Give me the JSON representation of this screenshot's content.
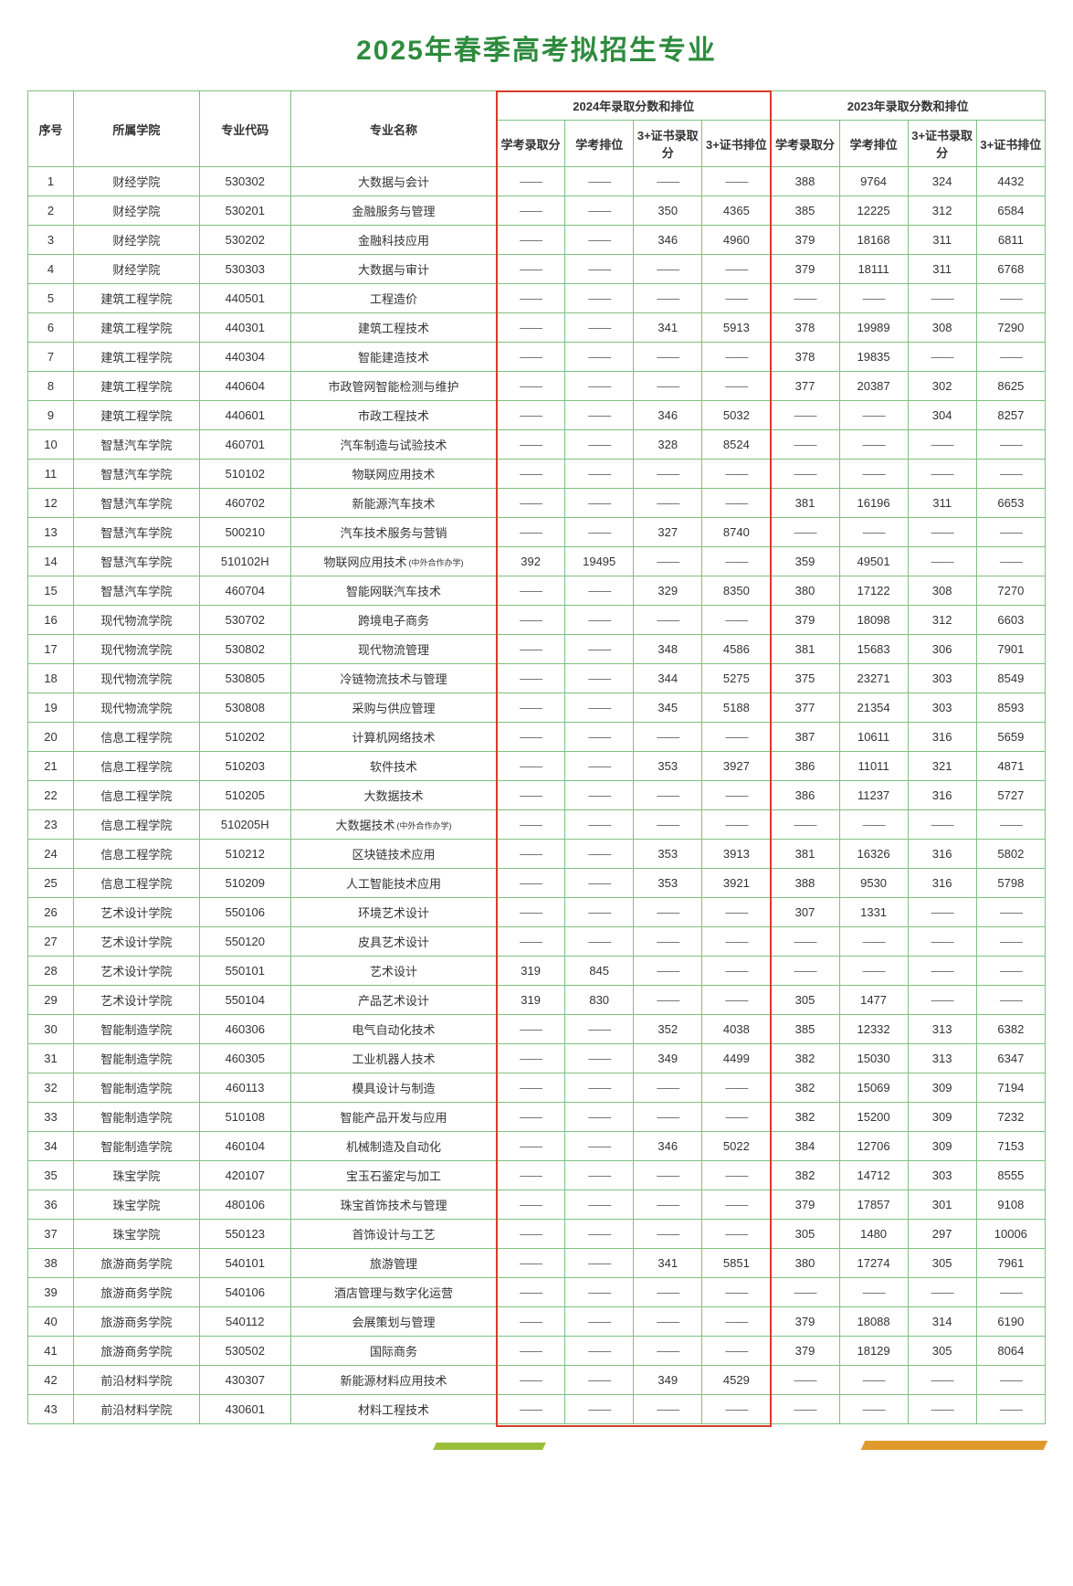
{
  "title": "2025年春季高考拟招生专业",
  "colors": {
    "title": "#2e8b3d",
    "border": "#7fc07f",
    "highlight": "#d93a2b",
    "deco_green": "#9bbf3b",
    "deco_orange": "#e09a2b"
  },
  "headers": {
    "idx": "序号",
    "college": "所属学院",
    "code": "专业代码",
    "major": "专业名称",
    "year2024": "2024年录取分数和排位",
    "year2023": "2023年录取分数和排位",
    "sub": {
      "xk_score": "学考录取分",
      "xk_rank": "学考排位",
      "cert_score": "3+证书录取分",
      "cert_rank": "3+证书排位"
    }
  },
  "dash": "——",
  "note_coop": "(中外合作办学)",
  "rows": [
    {
      "idx": "1",
      "college": "财经学院",
      "code": "530302",
      "major": "大数据与会计",
      "y24": [
        "",
        "",
        "",
        ""
      ],
      "y23": [
        "388",
        "9764",
        "324",
        "4432"
      ]
    },
    {
      "idx": "2",
      "college": "财经学院",
      "code": "530201",
      "major": "金融服务与管理",
      "y24": [
        "",
        "",
        "350",
        "4365"
      ],
      "y23": [
        "385",
        "12225",
        "312",
        "6584"
      ]
    },
    {
      "idx": "3",
      "college": "财经学院",
      "code": "530202",
      "major": "金融科技应用",
      "y24": [
        "",
        "",
        "346",
        "4960"
      ],
      "y23": [
        "379",
        "18168",
        "311",
        "6811"
      ]
    },
    {
      "idx": "4",
      "college": "财经学院",
      "code": "530303",
      "major": "大数据与审计",
      "y24": [
        "",
        "",
        "",
        ""
      ],
      "y23": [
        "379",
        "18111",
        "311",
        "6768"
      ]
    },
    {
      "idx": "5",
      "college": "建筑工程学院",
      "code": "440501",
      "major": "工程造价",
      "y24": [
        "",
        "",
        "",
        ""
      ],
      "y23": [
        "",
        "",
        "",
        ""
      ]
    },
    {
      "idx": "6",
      "college": "建筑工程学院",
      "code": "440301",
      "major": "建筑工程技术",
      "y24": [
        "",
        "",
        "341",
        "5913"
      ],
      "y23": [
        "378",
        "19989",
        "308",
        "7290"
      ]
    },
    {
      "idx": "7",
      "college": "建筑工程学院",
      "code": "440304",
      "major": "智能建造技术",
      "y24": [
        "",
        "",
        "",
        ""
      ],
      "y23": [
        "378",
        "19835",
        "",
        ""
      ]
    },
    {
      "idx": "8",
      "college": "建筑工程学院",
      "code": "440604",
      "major": "市政管网智能检测与维护",
      "y24": [
        "",
        "",
        "",
        ""
      ],
      "y23": [
        "377",
        "20387",
        "302",
        "8625"
      ]
    },
    {
      "idx": "9",
      "college": "建筑工程学院",
      "code": "440601",
      "major": "市政工程技术",
      "y24": [
        "",
        "",
        "346",
        "5032"
      ],
      "y23": [
        "",
        "",
        "304",
        "8257"
      ]
    },
    {
      "idx": "10",
      "college": "智慧汽车学院",
      "code": "460701",
      "major": "汽车制造与试验技术",
      "y24": [
        "",
        "",
        "328",
        "8524"
      ],
      "y23": [
        "",
        "",
        "",
        ""
      ]
    },
    {
      "idx": "11",
      "college": "智慧汽车学院",
      "code": "510102",
      "major": "物联网应用技术",
      "y24": [
        "",
        "",
        "",
        ""
      ],
      "y23": [
        "",
        "",
        "",
        ""
      ]
    },
    {
      "idx": "12",
      "college": "智慧汽车学院",
      "code": "460702",
      "major": "新能源汽车技术",
      "y24": [
        "",
        "",
        "",
        ""
      ],
      "y23": [
        "381",
        "16196",
        "311",
        "6653"
      ]
    },
    {
      "idx": "13",
      "college": "智慧汽车学院",
      "code": "500210",
      "major": "汽车技术服务与营销",
      "y24": [
        "",
        "",
        "327",
        "8740"
      ],
      "y23": [
        "",
        "",
        "",
        ""
      ]
    },
    {
      "idx": "14",
      "college": "智慧汽车学院",
      "code": "510102H",
      "major": "物联网应用技术",
      "note": true,
      "y24": [
        "392",
        "19495",
        "",
        ""
      ],
      "y23": [
        "359",
        "49501",
        "",
        ""
      ]
    },
    {
      "idx": "15",
      "college": "智慧汽车学院",
      "code": "460704",
      "major": "智能网联汽车技术",
      "y24": [
        "",
        "",
        "329",
        "8350"
      ],
      "y23": [
        "380",
        "17122",
        "308",
        "7270"
      ]
    },
    {
      "idx": "16",
      "college": "现代物流学院",
      "code": "530702",
      "major": "跨境电子商务",
      "y24": [
        "",
        "",
        "",
        ""
      ],
      "y23": [
        "379",
        "18098",
        "312",
        "6603"
      ]
    },
    {
      "idx": "17",
      "college": "现代物流学院",
      "code": "530802",
      "major": "现代物流管理",
      "y24": [
        "",
        "",
        "348",
        "4586"
      ],
      "y23": [
        "381",
        "15683",
        "306",
        "7901"
      ]
    },
    {
      "idx": "18",
      "college": "现代物流学院",
      "code": "530805",
      "major": "冷链物流技术与管理",
      "y24": [
        "",
        "",
        "344",
        "5275"
      ],
      "y23": [
        "375",
        "23271",
        "303",
        "8549"
      ]
    },
    {
      "idx": "19",
      "college": "现代物流学院",
      "code": "530808",
      "major": "采购与供应管理",
      "y24": [
        "",
        "",
        "345",
        "5188"
      ],
      "y23": [
        "377",
        "21354",
        "303",
        "8593"
      ]
    },
    {
      "idx": "20",
      "college": "信息工程学院",
      "code": "510202",
      "major": "计算机网络技术",
      "y24": [
        "",
        "",
        "",
        ""
      ],
      "y23": [
        "387",
        "10611",
        "316",
        "5659"
      ]
    },
    {
      "idx": "21",
      "college": "信息工程学院",
      "code": "510203",
      "major": "软件技术",
      "y24": [
        "",
        "",
        "353",
        "3927"
      ],
      "y23": [
        "386",
        "11011",
        "321",
        "4871"
      ]
    },
    {
      "idx": "22",
      "college": "信息工程学院",
      "code": "510205",
      "major": "大数据技术",
      "y24": [
        "",
        "",
        "",
        ""
      ],
      "y23": [
        "386",
        "11237",
        "316",
        "5727"
      ]
    },
    {
      "idx": "23",
      "college": "信息工程学院",
      "code": "510205H",
      "major": "大数据技术",
      "note": true,
      "y24": [
        "",
        "",
        "",
        ""
      ],
      "y23": [
        "",
        "",
        "",
        ""
      ]
    },
    {
      "idx": "24",
      "college": "信息工程学院",
      "code": "510212",
      "major": "区块链技术应用",
      "y24": [
        "",
        "",
        "353",
        "3913"
      ],
      "y23": [
        "381",
        "16326",
        "316",
        "5802"
      ]
    },
    {
      "idx": "25",
      "college": "信息工程学院",
      "code": "510209",
      "major": "人工智能技术应用",
      "y24": [
        "",
        "",
        "353",
        "3921"
      ],
      "y23": [
        "388",
        "9530",
        "316",
        "5798"
      ]
    },
    {
      "idx": "26",
      "college": "艺术设计学院",
      "code": "550106",
      "major": "环境艺术设计",
      "y24": [
        "",
        "",
        "",
        ""
      ],
      "y23": [
        "307",
        "1331",
        "",
        ""
      ]
    },
    {
      "idx": "27",
      "college": "艺术设计学院",
      "code": "550120",
      "major": "皮具艺术设计",
      "y24": [
        "",
        "",
        "",
        ""
      ],
      "y23": [
        "",
        "",
        "",
        ""
      ]
    },
    {
      "idx": "28",
      "college": "艺术设计学院",
      "code": "550101",
      "major": "艺术设计",
      "y24": [
        "319",
        "845",
        "",
        ""
      ],
      "y23": [
        "",
        "",
        "",
        ""
      ]
    },
    {
      "idx": "29",
      "college": "艺术设计学院",
      "code": "550104",
      "major": "产品艺术设计",
      "y24": [
        "319",
        "830",
        "",
        ""
      ],
      "y23": [
        "305",
        "1477",
        "",
        ""
      ]
    },
    {
      "idx": "30",
      "college": "智能制造学院",
      "code": "460306",
      "major": "电气自动化技术",
      "y24": [
        "",
        "",
        "352",
        "4038"
      ],
      "y23": [
        "385",
        "12332",
        "313",
        "6382"
      ]
    },
    {
      "idx": "31",
      "college": "智能制造学院",
      "code": "460305",
      "major": "工业机器人技术",
      "y24": [
        "",
        "",
        "349",
        "4499"
      ],
      "y23": [
        "382",
        "15030",
        "313",
        "6347"
      ]
    },
    {
      "idx": "32",
      "college": "智能制造学院",
      "code": "460113",
      "major": "模具设计与制造",
      "y24": [
        "",
        "",
        "",
        ""
      ],
      "y23": [
        "382",
        "15069",
        "309",
        "7194"
      ]
    },
    {
      "idx": "33",
      "college": "智能制造学院",
      "code": "510108",
      "major": "智能产品开发与应用",
      "y24": [
        "",
        "",
        "",
        ""
      ],
      "y23": [
        "382",
        "15200",
        "309",
        "7232"
      ]
    },
    {
      "idx": "34",
      "college": "智能制造学院",
      "code": "460104",
      "major": "机械制造及自动化",
      "y24": [
        "",
        "",
        "346",
        "5022"
      ],
      "y23": [
        "384",
        "12706",
        "309",
        "7153"
      ]
    },
    {
      "idx": "35",
      "college": "珠宝学院",
      "code": "420107",
      "major": "宝玉石鉴定与加工",
      "y24": [
        "",
        "",
        "",
        ""
      ],
      "y23": [
        "382",
        "14712",
        "303",
        "8555"
      ]
    },
    {
      "idx": "36",
      "college": "珠宝学院",
      "code": "480106",
      "major": "珠宝首饰技术与管理",
      "y24": [
        "",
        "",
        "",
        ""
      ],
      "y23": [
        "379",
        "17857",
        "301",
        "9108"
      ]
    },
    {
      "idx": "37",
      "college": "珠宝学院",
      "code": "550123",
      "major": "首饰设计与工艺",
      "y24": [
        "",
        "",
        "",
        ""
      ],
      "y23": [
        "305",
        "1480",
        "297",
        "10006"
      ]
    },
    {
      "idx": "38",
      "college": "旅游商务学院",
      "code": "540101",
      "major": "旅游管理",
      "y24": [
        "",
        "",
        "341",
        "5851"
      ],
      "y23": [
        "380",
        "17274",
        "305",
        "7961"
      ]
    },
    {
      "idx": "39",
      "college": "旅游商务学院",
      "code": "540106",
      "major": "酒店管理与数字化运营",
      "y24": [
        "",
        "",
        "",
        ""
      ],
      "y23": [
        "",
        "",
        "",
        ""
      ]
    },
    {
      "idx": "40",
      "college": "旅游商务学院",
      "code": "540112",
      "major": "会展策划与管理",
      "y24": [
        "",
        "",
        "",
        ""
      ],
      "y23": [
        "379",
        "18088",
        "314",
        "6190"
      ]
    },
    {
      "idx": "41",
      "college": "旅游商务学院",
      "code": "530502",
      "major": "国际商务",
      "y24": [
        "",
        "",
        "",
        ""
      ],
      "y23": [
        "379",
        "18129",
        "305",
        "8064"
      ]
    },
    {
      "idx": "42",
      "college": "前沿材料学院",
      "code": "430307",
      "major": "新能源材料应用技术",
      "y24": [
        "",
        "",
        "349",
        "4529"
      ],
      "y23": [
        "",
        "",
        "",
        ""
      ]
    },
    {
      "idx": "43",
      "college": "前沿材料学院",
      "code": "430601",
      "major": "材料工程技术",
      "y24": [
        "",
        "",
        "",
        ""
      ],
      "y23": [
        "",
        "",
        "",
        ""
      ]
    }
  ]
}
